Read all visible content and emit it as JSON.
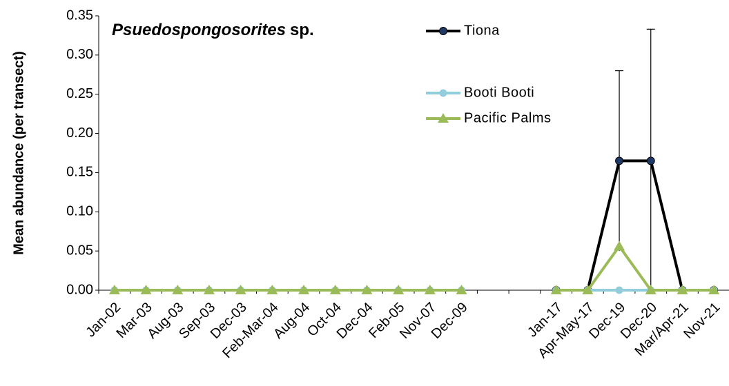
{
  "chart_data": {
    "type": "line",
    "title": {
      "genus": "Psuedospongosorites",
      "suffix": "sp."
    },
    "y_label": "Mean abundance (per transect)",
    "categories": [
      "Jan-02",
      "Mar-03",
      "Aug-03",
      "Sep-03",
      "Dec-03",
      "Feb-Mar-04",
      "Aug-04",
      "Oct-04",
      "Dec-04",
      "Feb-05",
      "Nov-07",
      "Dec-09",
      null,
      null,
      "Jan-17",
      "Apr-May-17",
      "Dec-19",
      "Dec-20",
      "Mar/Apr-21",
      "Nov-21"
    ],
    "series": [
      {
        "name": "Tiona",
        "color": "#000000",
        "marker": "circle",
        "marker_color": "#1f3864",
        "values": [
          null,
          null,
          null,
          null,
          null,
          null,
          null,
          null,
          null,
          null,
          null,
          null,
          null,
          null,
          0,
          0,
          0.165,
          0.165,
          0,
          0
        ],
        "errors": [
          null,
          null,
          null,
          null,
          null,
          null,
          null,
          null,
          null,
          null,
          null,
          null,
          null,
          null,
          null,
          null,
          0.115,
          0.168,
          null,
          null
        ]
      },
      {
        "name": "Booti Booti",
        "color": "#92cddc",
        "marker": "circle",
        "marker_color": "#92cddc",
        "values": [
          0,
          0,
          0,
          0,
          0,
          0,
          0,
          0,
          0,
          0,
          0,
          0,
          null,
          null,
          0,
          0,
          0,
          0,
          0,
          0
        ]
      },
      {
        "name": "Pacific Palms",
        "color": "#9bbb59",
        "marker": "triangle",
        "marker_color": "#9bbb59",
        "values": [
          0,
          0,
          0,
          0,
          0,
          0,
          0,
          0,
          0,
          0,
          0,
          0,
          null,
          null,
          0,
          0,
          0.056,
          0,
          0,
          0
        ]
      }
    ],
    "ylim": [
      0,
      0.35
    ],
    "yticks": [
      {
        "value": 0,
        "label": "0.00"
      },
      {
        "value": 0.05,
        "label": "0.05"
      },
      {
        "value": 0.1,
        "label": "0.10"
      },
      {
        "value": 0.15,
        "label": "0.15"
      },
      {
        "value": 0.2,
        "label": "0.20"
      },
      {
        "value": 0.25,
        "label": "0.25"
      },
      {
        "value": 0.3,
        "label": "0.30"
      },
      {
        "value": 0.35,
        "label": "0.35"
      }
    ]
  }
}
